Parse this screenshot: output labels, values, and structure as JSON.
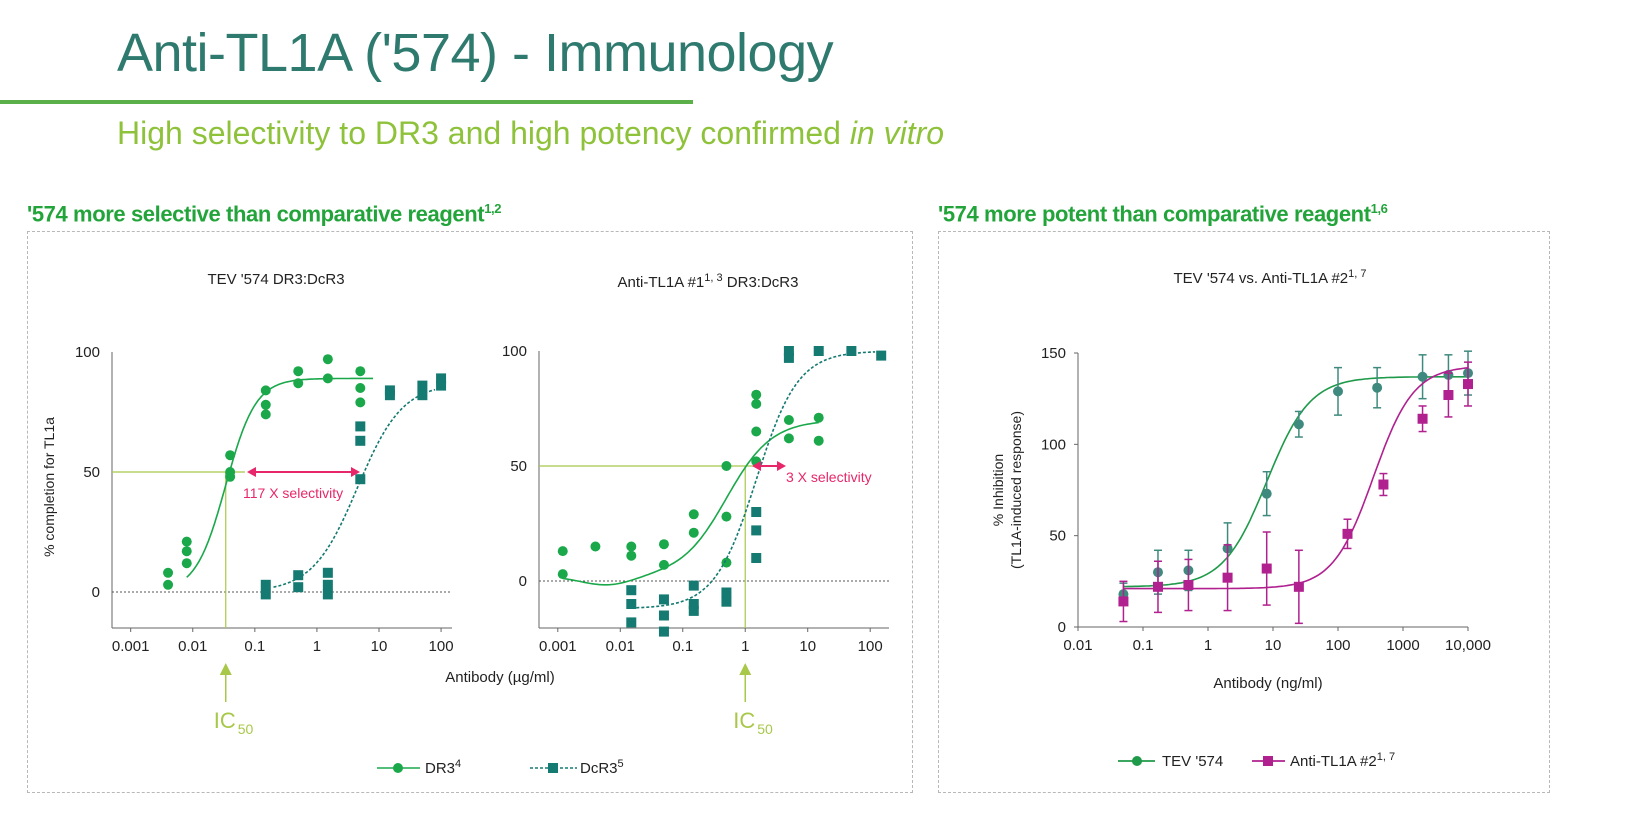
{
  "title": "Anti-TL1A ('574) - Immunology",
  "subtitle": {
    "main": "High selectivity to DR3 and high potency confirmed ",
    "emph": "in vitro"
  },
  "left_section": {
    "text": "'574 more selective than comparative reagent",
    "sup": "1,2"
  },
  "right_section": {
    "text": "'574 more potent than comparative reagent",
    "sup": "1,6"
  },
  "colors": {
    "title": "#2e7a6e",
    "subtitle": "#8fc23b",
    "section": "#22a43a",
    "dr3": "#1aa84a",
    "dcr3": "#157a72",
    "tev": "#1f9a4a",
    "tev_marker": "#3f8a7e",
    "anti2": "#b0208f",
    "highlight": "#e8276a",
    "ic50": "#a8c84a"
  },
  "chart_data": [
    {
      "type": "scatter",
      "title": "TEV '574  DR3:DcR3",
      "xscale": "log",
      "xlim": [
        0.0005,
        150
      ],
      "ylim": [
        -15,
        100
      ],
      "xticks": [
        "0.001",
        "0.01",
        "0.1",
        "1",
        "10",
        "100"
      ],
      "yticks": [
        "0",
        "50",
        "100"
      ],
      "ylabel": "% completion for TL1a",
      "series": [
        {
          "name": "DR3",
          "marker": "circle",
          "x": [
            0.004,
            0.004,
            0.008,
            0.008,
            0.008,
            0.04,
            0.04,
            0.04,
            0.15,
            0.15,
            0.15,
            0.5,
            0.5,
            1.5,
            1.5,
            5,
            5,
            5
          ],
          "y": [
            8,
            3,
            21,
            17,
            12,
            57,
            50,
            48,
            84,
            78,
            74,
            92,
            87,
            97,
            89,
            92,
            85,
            79
          ],
          "fit": {
            "bottom": 0,
            "top": 89,
            "ec50": 0.034,
            "hill": 1.8,
            "xrange": [
              0.008,
              8
            ]
          }
        },
        {
          "name": "DcR3",
          "marker": "square",
          "x": [
            0.15,
            0.15,
            0.5,
            0.5,
            1.5,
            1.5,
            1.5,
            5,
            5,
            5,
            15,
            15,
            50,
            50,
            100,
            100
          ],
          "y": [
            3,
            -1,
            7,
            2,
            8,
            3,
            -1,
            69,
            63,
            47,
            84,
            82,
            86,
            82,
            89,
            86
          ],
          "fit": {
            "bottom": 0,
            "top": 87,
            "ec50": 4.5,
            "hill": 1.2,
            "xrange": [
              0.2,
              80
            ]
          }
        }
      ],
      "annotation": {
        "text": "117 X selectivity",
        "level": 50,
        "ic50": 0.034
      },
      "ic50_label": "IC",
      "ic50_sub": "50"
    },
    {
      "type": "scatter",
      "title": "Anti-TL1A  #1",
      "title_sup": "1, 3",
      "title_tail": " DR3:DcR3",
      "xscale": "log",
      "xlim": [
        0.0005,
        200
      ],
      "ylim": [
        -22,
        100
      ],
      "xticks": [
        "0.001",
        "0.01",
        "0.1",
        "1",
        "10",
        "100"
      ],
      "yticks": [
        "0",
        "50",
        "100"
      ],
      "series": [
        {
          "name": "DR3",
          "marker": "circle",
          "x": [
            0.0012,
            0.0012,
            0.004,
            0.015,
            0.015,
            0.05,
            0.05,
            0.15,
            0.15,
            0.5,
            0.5,
            0.5,
            1.5,
            1.5,
            1.5,
            1.5,
            5,
            5,
            15,
            15
          ],
          "y": [
            13,
            3,
            15,
            15,
            11,
            16,
            7,
            29,
            21,
            50,
            28,
            8,
            81,
            77,
            65,
            52,
            70,
            62,
            71,
            61
          ],
          "fit": {
            "bottom": 2,
            "top": 70,
            "ec50": 0.5,
            "hill": 1.2,
            "xrange": [
              0.0012,
              15
            ],
            "dip": true
          }
        },
        {
          "name": "DcR3",
          "marker": "square",
          "x": [
            0.015,
            0.015,
            0.015,
            0.05,
            0.05,
            0.05,
            0.15,
            0.15,
            0.15,
            0.5,
            0.5,
            1.5,
            1.5,
            1.5,
            5,
            5,
            15,
            50,
            150
          ],
          "y": [
            -4,
            -10,
            -18,
            -8,
            -15,
            -22,
            -2,
            -10,
            -13,
            -5,
            -9,
            10,
            30,
            22,
            100,
            97,
            100,
            100,
            98
          ],
          "fit": {
            "bottom": -12,
            "top": 100,
            "ec50": 1.5,
            "hill": 1.3,
            "xrange": [
              0.015,
              120
            ]
          }
        }
      ],
      "annotation": {
        "text": "3 X selectivity",
        "level": 50,
        "ic50": 1.0
      },
      "ic50_label": "IC",
      "ic50_sub": "50"
    },
    {
      "type": "line",
      "title": "TEV '574  vs.  Anti-TL1A  #2",
      "title_sup": "1, 7",
      "xscale": "log",
      "xlim": [
        0.01,
        10000
      ],
      "ylim": [
        0,
        150
      ],
      "xticks": [
        "0.01",
        "0.1",
        "1",
        "10",
        "100",
        "1000",
        "10,000"
      ],
      "yticks": [
        "0",
        "50",
        "100",
        "150"
      ],
      "xlabel": "Antibody (ng/ml)",
      "ylabel": "% Inhibition",
      "ylabel2": "(TL1A-induced  response)",
      "series": [
        {
          "name": "TEV '574",
          "marker": "circle",
          "x": [
            0.05,
            0.17,
            0.5,
            2,
            8,
            25,
            100,
            400,
            2000,
            5000,
            10000
          ],
          "y": [
            18,
            30,
            31,
            43,
            73,
            111,
            129,
            131,
            137,
            138,
            139
          ],
          "err": [
            6,
            12,
            11,
            14,
            12,
            7,
            13,
            11,
            12,
            11,
            12
          ],
          "fit": {
            "bottom": 22,
            "top": 137,
            "ec50": 8,
            "hill": 1.3
          }
        },
        {
          "name": "Anti-TL1A  #2",
          "marker": "square",
          "x": [
            0.05,
            0.17,
            0.5,
            2,
            8,
            25,
            140,
            500,
            2000,
            5000,
            10000
          ],
          "y": [
            14,
            22,
            23,
            27,
            32,
            22,
            51,
            78,
            114,
            127,
            133
          ],
          "err": [
            11,
            14,
            14,
            18,
            20,
            20,
            8,
            6,
            7,
            12,
            12
          ],
          "fit": {
            "bottom": 21,
            "top": 143,
            "ec50": 350,
            "hill": 1.4
          }
        }
      ]
    }
  ],
  "shared_xlabel": "Antibody (µg/ml)",
  "left_legend": [
    {
      "label": "DR3",
      "sup": "4"
    },
    {
      "label": "DcR3",
      "sup": "5"
    }
  ],
  "right_legend": [
    {
      "label": "TEV '574",
      "sup": ""
    },
    {
      "label": "Anti-TL1A  #2",
      "sup": "1, 7"
    }
  ]
}
